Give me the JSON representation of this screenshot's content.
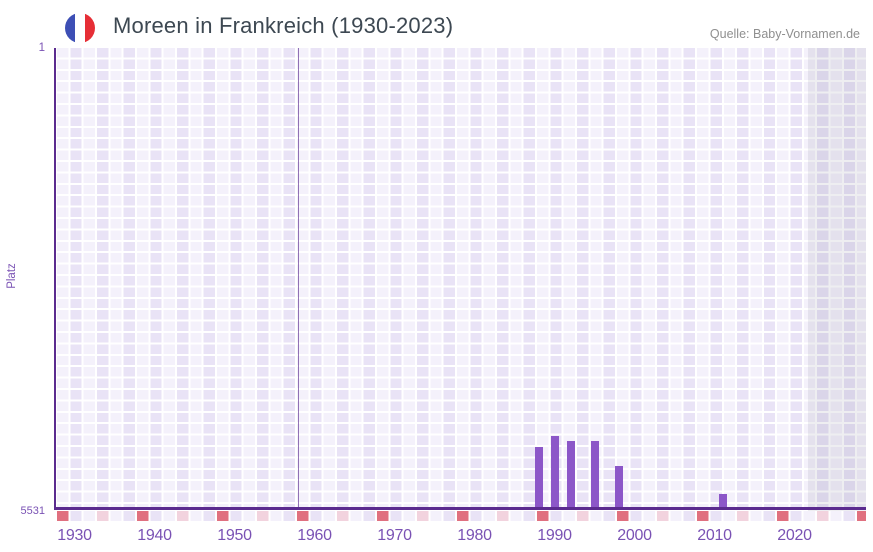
{
  "header": {
    "title": "Moreen in Frankreich (1930-2023)",
    "source": "Quelle: Baby-Vornamen.de",
    "flag_icon": "france-flag-circle",
    "flag_colors": {
      "blue": "#3d4fb5",
      "white": "#ffffff",
      "red": "#e62e36"
    }
  },
  "axes": {
    "y_label": "Platz",
    "y_top_tick": "1",
    "y_bottom_tick": "5531",
    "x_ticks": [
      "1930",
      "1940",
      "1950",
      "1960",
      "1970",
      "1980",
      "1990",
      "2000",
      "2010",
      "2020"
    ]
  },
  "chart_data": {
    "type": "bar",
    "title": "Moreen in Frankreich (1930-2023)",
    "xlabel": "",
    "ylabel": "Platz",
    "y_axis": {
      "top_value": 1,
      "bottom_value": 5531,
      "inverted_rank_axis": true
    },
    "x_axis": {
      "label_years": [
        1930,
        1940,
        1950,
        1960,
        1970,
        1980,
        1990,
        2000,
        2010,
        2020
      ]
    },
    "points": [
      {
        "year": 1988,
        "rank": 4810
      },
      {
        "year": 1990,
        "rank": 4670
      },
      {
        "year": 1992,
        "rank": 4730
      },
      {
        "year": 1995,
        "rank": 4730
      },
      {
        "year": 1998,
        "rank": 5040
      },
      {
        "year": 2011,
        "rank": 5370
      }
    ],
    "crosshair": {
      "visible": true,
      "year": 1958
    },
    "highlight_band": {
      "from_year": 2022,
      "to_plot_edge": true
    },
    "axis_tick_marks": {
      "interval_years": 5,
      "start_year": 1928,
      "alternating_colors": [
        "#e0707f",
        "#f2d3de"
      ]
    },
    "grid": "checkered lavender plaid",
    "legend": "none"
  },
  "colors": {
    "bar": "#8c57c8",
    "axis_line": "#5b2b8f",
    "axis_text": "#7a52b4",
    "grid_light": "#f4f1fb",
    "grid_dark": "#e9e3f6",
    "mark_red": "#e0707f",
    "mark_pink": "#f2d3de",
    "band_overlay": "rgba(104,102,130,0.11)",
    "title_text": "#3d4852",
    "source_text": "#8f8f8f"
  }
}
